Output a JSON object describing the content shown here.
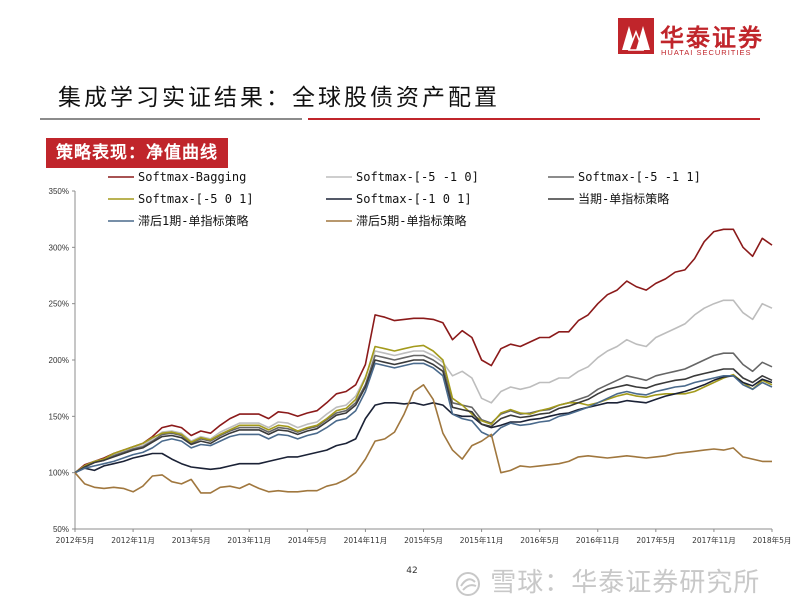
{
  "header": {
    "brand_cn": "华泰证券",
    "brand_en": "HUATAI SECURITIES",
    "brand_color": "#c0252b",
    "title": "集成学习实证结果：全球股债资产配置"
  },
  "section_label": "策略表现：净值曲线",
  "footer": {
    "page_number": "42",
    "watermark": "雪球：华泰证券研究所"
  },
  "chart_data": {
    "type": "line",
    "title": "",
    "xlabel": "",
    "ylabel": "",
    "ylim": [
      0.5,
      3.5
    ],
    "yticks": [
      {
        "value": 0.5,
        "label": "50%"
      },
      {
        "value": 1.0,
        "label": "100%"
      },
      {
        "value": 1.5,
        "label": "150%"
      },
      {
        "value": 2.0,
        "label": "200%"
      },
      {
        "value": 2.5,
        "label": "250%"
      },
      {
        "value": 3.0,
        "label": "300%"
      },
      {
        "value": 3.5,
        "label": "350%"
      }
    ],
    "x": [
      "2012-05",
      "2012-06",
      "2012-07",
      "2012-08",
      "2012-09",
      "2012-10",
      "2012-11",
      "2012-12",
      "2013-01",
      "2013-02",
      "2013-03",
      "2013-04",
      "2013-05",
      "2013-06",
      "2013-07",
      "2013-08",
      "2013-09",
      "2013-10",
      "2013-11",
      "2013-12",
      "2014-01",
      "2014-02",
      "2014-03",
      "2014-04",
      "2014-05",
      "2014-06",
      "2014-07",
      "2014-08",
      "2014-09",
      "2014-10",
      "2014-11",
      "2014-12",
      "2015-01",
      "2015-02",
      "2015-03",
      "2015-04",
      "2015-05",
      "2015-06",
      "2015-07",
      "2015-08",
      "2015-09",
      "2015-10",
      "2015-11",
      "2015-12",
      "2016-01",
      "2016-02",
      "2016-03",
      "2016-04",
      "2016-05",
      "2016-06",
      "2016-07",
      "2016-08",
      "2016-09",
      "2016-10",
      "2016-11",
      "2016-12",
      "2017-01",
      "2017-02",
      "2017-03",
      "2017-04",
      "2017-05",
      "2017-06",
      "2017-07",
      "2017-08",
      "2017-09",
      "2017-10",
      "2017-11",
      "2017-12",
      "2018-01",
      "2018-02",
      "2018-03",
      "2018-04",
      "2018-05"
    ],
    "xtick_labels": [
      "2012年5月",
      "2012年11月",
      "2013年5月",
      "2013年11月",
      "2014年5月",
      "2014年11月",
      "2015年5月",
      "2015年11月",
      "2016年5月",
      "2016年11月",
      "2017年5月",
      "2017年11月",
      "2018年5月"
    ],
    "xtick_positions": [
      "2012-05",
      "2012-11",
      "2013-05",
      "2013-11",
      "2014-05",
      "2014-11",
      "2015-05",
      "2015-11",
      "2016-05",
      "2016-11",
      "2017-05",
      "2017-11",
      "2018-05"
    ],
    "legend_placement": "top",
    "grid": false,
    "series": [
      {
        "name": "Softmax-Bagging",
        "color": "#8b1a1a",
        "values": [
          1.0,
          1.07,
          1.1,
          1.13,
          1.17,
          1.2,
          1.23,
          1.26,
          1.32,
          1.4,
          1.42,
          1.4,
          1.33,
          1.37,
          1.35,
          1.42,
          1.48,
          1.52,
          1.52,
          1.52,
          1.48,
          1.54,
          1.53,
          1.5,
          1.53,
          1.55,
          1.62,
          1.7,
          1.72,
          1.78,
          1.96,
          2.4,
          2.38,
          2.35,
          2.36,
          2.37,
          2.37,
          2.36,
          2.33,
          2.18,
          2.26,
          2.2,
          2.0,
          1.95,
          2.1,
          2.14,
          2.12,
          2.16,
          2.2,
          2.2,
          2.25,
          2.25,
          2.35,
          2.4,
          2.5,
          2.58,
          2.62,
          2.7,
          2.65,
          2.62,
          2.68,
          2.72,
          2.78,
          2.8,
          2.9,
          3.05,
          3.14,
          3.16,
          3.16,
          3.0,
          2.92,
          3.08,
          3.02
        ]
      },
      {
        "name": "Softmax-[-5 -1  0]",
        "color": "#bdbdbd",
        "values": [
          1.0,
          1.06,
          1.1,
          1.12,
          1.16,
          1.19,
          1.22,
          1.24,
          1.3,
          1.36,
          1.37,
          1.35,
          1.28,
          1.32,
          1.3,
          1.36,
          1.4,
          1.44,
          1.44,
          1.44,
          1.4,
          1.45,
          1.44,
          1.4,
          1.43,
          1.45,
          1.52,
          1.58,
          1.6,
          1.68,
          1.85,
          2.08,
          2.06,
          2.04,
          2.06,
          2.08,
          2.08,
          2.04,
          1.98,
          1.86,
          1.9,
          1.84,
          1.66,
          1.62,
          1.72,
          1.76,
          1.74,
          1.76,
          1.8,
          1.8,
          1.84,
          1.84,
          1.9,
          1.94,
          2.02,
          2.08,
          2.12,
          2.18,
          2.14,
          2.12,
          2.2,
          2.24,
          2.28,
          2.32,
          2.4,
          2.46,
          2.5,
          2.53,
          2.53,
          2.42,
          2.36,
          2.5,
          2.46
        ]
      },
      {
        "name": "Softmax-[-5 -1  1]",
        "color": "#666666",
        "values": [
          1.0,
          1.05,
          1.09,
          1.11,
          1.15,
          1.18,
          1.21,
          1.23,
          1.28,
          1.34,
          1.35,
          1.33,
          1.26,
          1.3,
          1.28,
          1.33,
          1.37,
          1.4,
          1.4,
          1.4,
          1.36,
          1.4,
          1.39,
          1.36,
          1.39,
          1.41,
          1.47,
          1.53,
          1.55,
          1.62,
          1.78,
          2.04,
          2.02,
          2.0,
          2.02,
          2.04,
          2.04,
          2.0,
          1.94,
          1.62,
          1.6,
          1.58,
          1.47,
          1.44,
          1.52,
          1.55,
          1.52,
          1.53,
          1.55,
          1.56,
          1.6,
          1.62,
          1.65,
          1.68,
          1.74,
          1.78,
          1.82,
          1.86,
          1.84,
          1.82,
          1.86,
          1.88,
          1.9,
          1.92,
          1.96,
          2.0,
          2.04,
          2.06,
          2.06,
          1.96,
          1.9,
          1.98,
          1.94
        ]
      },
      {
        "name": "Softmax-[-5  0  1]",
        "color": "#a39a1c",
        "values": [
          1.0,
          1.06,
          1.1,
          1.12,
          1.17,
          1.2,
          1.23,
          1.26,
          1.31,
          1.35,
          1.36,
          1.34,
          1.27,
          1.31,
          1.29,
          1.34,
          1.38,
          1.42,
          1.42,
          1.42,
          1.38,
          1.42,
          1.41,
          1.37,
          1.4,
          1.42,
          1.48,
          1.55,
          1.57,
          1.65,
          1.84,
          2.12,
          2.1,
          2.08,
          2.1,
          2.12,
          2.13,
          2.08,
          2.0,
          1.66,
          1.6,
          1.52,
          1.46,
          1.43,
          1.53,
          1.56,
          1.53,
          1.52,
          1.55,
          1.57,
          1.6,
          1.62,
          1.62,
          1.6,
          1.62,
          1.65,
          1.68,
          1.7,
          1.68,
          1.67,
          1.69,
          1.7,
          1.7,
          1.7,
          1.72,
          1.76,
          1.8,
          1.84,
          1.87,
          1.8,
          1.74,
          1.82,
          1.78
        ]
      },
      {
        "name": "Softmax-[-1  0  1]",
        "color": "#1b2236",
        "values": [
          1.0,
          1.04,
          1.02,
          1.06,
          1.08,
          1.1,
          1.13,
          1.15,
          1.17,
          1.17,
          1.12,
          1.08,
          1.05,
          1.04,
          1.03,
          1.04,
          1.06,
          1.08,
          1.08,
          1.08,
          1.1,
          1.12,
          1.14,
          1.14,
          1.16,
          1.18,
          1.2,
          1.24,
          1.26,
          1.3,
          1.48,
          1.6,
          1.62,
          1.62,
          1.61,
          1.62,
          1.6,
          1.62,
          1.6,
          1.52,
          1.5,
          1.5,
          1.43,
          1.4,
          1.42,
          1.45,
          1.45,
          1.47,
          1.48,
          1.5,
          1.52,
          1.53,
          1.56,
          1.58,
          1.6,
          1.62,
          1.62,
          1.64,
          1.63,
          1.62,
          1.65,
          1.68,
          1.7,
          1.72,
          1.75,
          1.78,
          1.82,
          1.85,
          1.86,
          1.8,
          1.77,
          1.83,
          1.8
        ]
      },
      {
        "name": "当期-单指标策略",
        "color": "#3a3a3a",
        "values": [
          1.0,
          1.05,
          1.09,
          1.11,
          1.14,
          1.17,
          1.2,
          1.22,
          1.27,
          1.32,
          1.33,
          1.31,
          1.25,
          1.28,
          1.26,
          1.31,
          1.35,
          1.38,
          1.38,
          1.38,
          1.34,
          1.38,
          1.37,
          1.34,
          1.37,
          1.39,
          1.45,
          1.51,
          1.53,
          1.6,
          1.76,
          2.0,
          1.98,
          1.96,
          1.98,
          2.0,
          2.0,
          1.96,
          1.9,
          1.58,
          1.56,
          1.54,
          1.43,
          1.41,
          1.48,
          1.51,
          1.49,
          1.5,
          1.52,
          1.53,
          1.57,
          1.59,
          1.62,
          1.65,
          1.7,
          1.74,
          1.76,
          1.78,
          1.76,
          1.75,
          1.78,
          1.8,
          1.82,
          1.83,
          1.86,
          1.88,
          1.9,
          1.92,
          1.92,
          1.84,
          1.8,
          1.86,
          1.82
        ]
      },
      {
        "name": "滞后1期-单指标策略",
        "color": "#4a6a8c",
        "values": [
          1.0,
          1.04,
          1.06,
          1.08,
          1.1,
          1.13,
          1.16,
          1.18,
          1.22,
          1.28,
          1.3,
          1.28,
          1.22,
          1.25,
          1.24,
          1.28,
          1.32,
          1.34,
          1.34,
          1.34,
          1.3,
          1.34,
          1.33,
          1.3,
          1.33,
          1.35,
          1.4,
          1.46,
          1.48,
          1.55,
          1.72,
          1.97,
          1.95,
          1.93,
          1.95,
          1.97,
          1.97,
          1.93,
          1.86,
          1.52,
          1.48,
          1.46,
          1.36,
          1.32,
          1.4,
          1.44,
          1.42,
          1.43,
          1.45,
          1.46,
          1.5,
          1.52,
          1.55,
          1.58,
          1.62,
          1.66,
          1.7,
          1.72,
          1.7,
          1.69,
          1.72,
          1.74,
          1.76,
          1.77,
          1.8,
          1.82,
          1.84,
          1.86,
          1.86,
          1.78,
          1.74,
          1.8,
          1.76
        ]
      },
      {
        "name": "滞后5期-单指标策略",
        "color": "#a0773e",
        "values": [
          1.0,
          0.9,
          0.87,
          0.86,
          0.87,
          0.86,
          0.83,
          0.88,
          0.97,
          0.98,
          0.92,
          0.9,
          0.94,
          0.82,
          0.82,
          0.87,
          0.88,
          0.86,
          0.9,
          0.86,
          0.83,
          0.84,
          0.83,
          0.83,
          0.84,
          0.84,
          0.88,
          0.9,
          0.94,
          1.0,
          1.12,
          1.28,
          1.3,
          1.36,
          1.52,
          1.72,
          1.78,
          1.65,
          1.35,
          1.2,
          1.12,
          1.24,
          1.28,
          1.34,
          1.0,
          1.02,
          1.06,
          1.05,
          1.06,
          1.07,
          1.08,
          1.1,
          1.14,
          1.15,
          1.14,
          1.13,
          1.14,
          1.15,
          1.14,
          1.13,
          1.14,
          1.15,
          1.17,
          1.18,
          1.19,
          1.2,
          1.21,
          1.2,
          1.22,
          1.14,
          1.12,
          1.1,
          1.1
        ]
      }
    ]
  }
}
